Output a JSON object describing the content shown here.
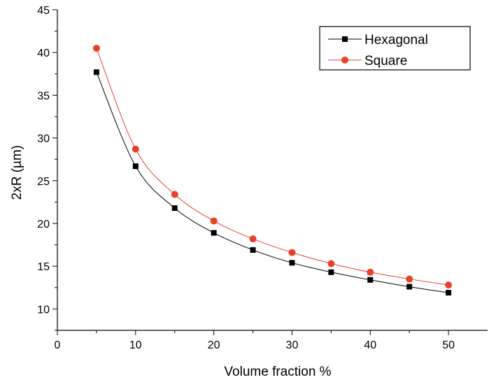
{
  "chart_data": {
    "type": "line",
    "title": "",
    "xlabel": "Volume fraction %",
    "ylabel": "2xR (µm)",
    "xlim": [
      0,
      55
    ],
    "ylim": [
      7.5,
      45
    ],
    "x_ticks": [
      0,
      10,
      20,
      30,
      40,
      50
    ],
    "y_ticks": [
      10,
      15,
      20,
      25,
      30,
      35,
      40,
      45
    ],
    "grid": false,
    "legend_position": "top-right",
    "x": [
      5,
      10,
      15,
      20,
      25,
      30,
      35,
      40,
      45,
      50
    ],
    "series": [
      {
        "name": "Hexagonal",
        "marker": "square",
        "color": "#000000",
        "line_color": "#000000",
        "values": [
          37.7,
          26.7,
          21.8,
          18.9,
          16.9,
          15.4,
          14.3,
          13.4,
          12.6,
          11.9
        ]
      },
      {
        "name": "Square",
        "marker": "circle",
        "color": "#e8412c",
        "line_color": "#e8412c",
        "values": [
          40.5,
          28.7,
          23.4,
          20.3,
          18.2,
          16.6,
          15.3,
          14.3,
          13.5,
          12.8
        ]
      }
    ]
  }
}
